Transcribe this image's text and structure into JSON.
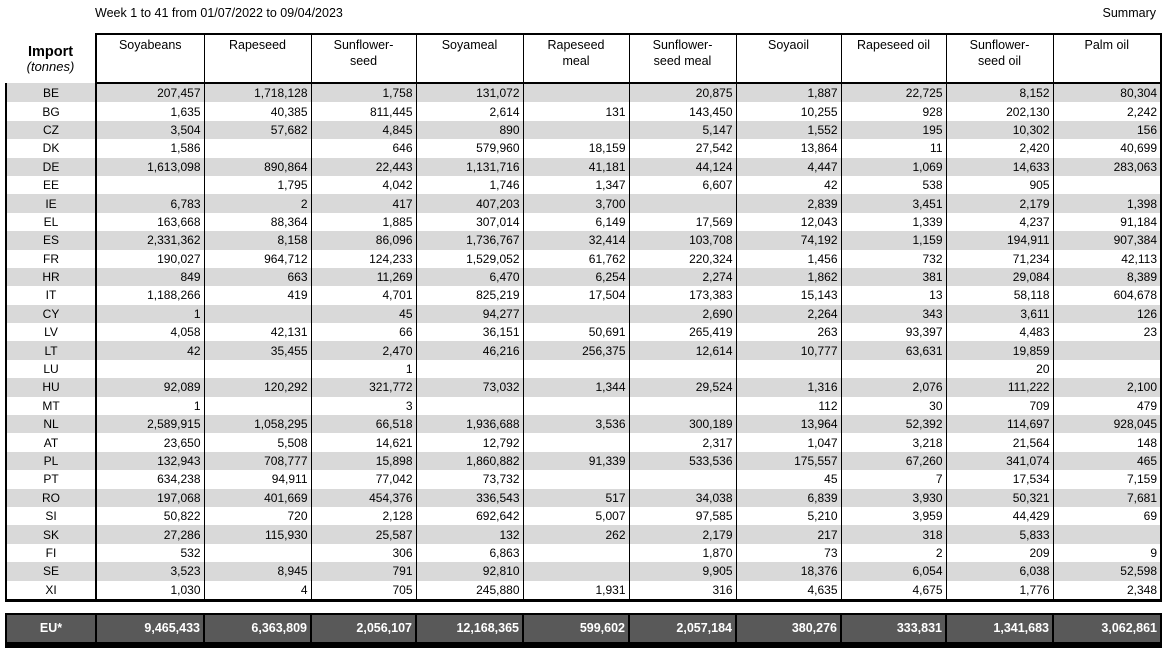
{
  "title": "Week 1 to 41 from 01/07/2022 to 09/04/2023",
  "summary_label": "Summary",
  "colors": {
    "stripe": "#d9d9d9",
    "total_bg": "#595959",
    "border": "#000000"
  },
  "table": {
    "corner": {
      "line1": "Import",
      "line2": "(tonnes)"
    },
    "columns": [
      {
        "label": "Soyabeans",
        "lines": [
          "Soyabeans"
        ]
      },
      {
        "label": "Rapeseed",
        "lines": [
          "Rapeseed"
        ]
      },
      {
        "label": "Sunflower-seed",
        "lines": [
          "Sunflower-",
          "seed"
        ]
      },
      {
        "label": "Soyameal",
        "lines": [
          "Soyameal"
        ]
      },
      {
        "label": "Rapeseed meal",
        "lines": [
          "Rapeseed",
          "meal"
        ]
      },
      {
        "label": "Sunflower-seed meal",
        "lines": [
          "Sunflower-",
          "seed meal"
        ]
      },
      {
        "label": "Soyaoil",
        "lines": [
          "Soyaoil"
        ]
      },
      {
        "label": "Rapeseed oil",
        "lines": [
          "Rapeseed oil"
        ]
      },
      {
        "label": "Sunflower-seed oil",
        "lines": [
          "Sunflower-",
          "seed oil"
        ]
      },
      {
        "label": "Palm oil",
        "lines": [
          "Palm oil"
        ]
      }
    ],
    "rows": [
      {
        "country": "BE",
        "values": [
          "207,457",
          "1,718,128",
          "1,758",
          "131,072",
          "",
          "20,875",
          "1,887",
          "22,725",
          "8,152",
          "80,304"
        ]
      },
      {
        "country": "BG",
        "values": [
          "1,635",
          "40,385",
          "811,445",
          "2,614",
          "131",
          "143,450",
          "10,255",
          "928",
          "202,130",
          "2,242"
        ]
      },
      {
        "country": "CZ",
        "values": [
          "3,504",
          "57,682",
          "4,845",
          "890",
          "",
          "5,147",
          "1,552",
          "195",
          "10,302",
          "156"
        ]
      },
      {
        "country": "DK",
        "values": [
          "1,586",
          "",
          "646",
          "579,960",
          "18,159",
          "27,542",
          "13,864",
          "11",
          "2,420",
          "40,699"
        ]
      },
      {
        "country": "DE",
        "values": [
          "1,613,098",
          "890,864",
          "22,443",
          "1,131,716",
          "41,181",
          "44,124",
          "4,447",
          "1,069",
          "14,633",
          "283,063"
        ]
      },
      {
        "country": "EE",
        "values": [
          "",
          "1,795",
          "4,042",
          "1,746",
          "1,347",
          "6,607",
          "42",
          "538",
          "905",
          ""
        ]
      },
      {
        "country": "IE",
        "values": [
          "6,783",
          "2",
          "417",
          "407,203",
          "3,700",
          "",
          "2,839",
          "3,451",
          "2,179",
          "1,398"
        ]
      },
      {
        "country": "EL",
        "values": [
          "163,668",
          "88,364",
          "1,885",
          "307,014",
          "6,149",
          "17,569",
          "12,043",
          "1,339",
          "4,237",
          "91,184"
        ]
      },
      {
        "country": "ES",
        "values": [
          "2,331,362",
          "8,158",
          "86,096",
          "1,736,767",
          "32,414",
          "103,708",
          "74,192",
          "1,159",
          "194,911",
          "907,384"
        ]
      },
      {
        "country": "FR",
        "values": [
          "190,027",
          "964,712",
          "124,233",
          "1,529,052",
          "61,762",
          "220,324",
          "1,456",
          "732",
          "71,234",
          "42,113"
        ]
      },
      {
        "country": "HR",
        "values": [
          "849",
          "663",
          "11,269",
          "6,470",
          "6,254",
          "2,274",
          "1,862",
          "381",
          "29,084",
          "8,389"
        ]
      },
      {
        "country": "IT",
        "values": [
          "1,188,266",
          "419",
          "4,701",
          "825,219",
          "17,504",
          "173,383",
          "15,143",
          "13",
          "58,118",
          "604,678"
        ]
      },
      {
        "country": "CY",
        "values": [
          "1",
          "",
          "45",
          "94,277",
          "",
          "2,690",
          "2,264",
          "343",
          "3,611",
          "126"
        ]
      },
      {
        "country": "LV",
        "values": [
          "4,058",
          "42,131",
          "66",
          "36,151",
          "50,691",
          "265,419",
          "263",
          "93,397",
          "4,483",
          "23"
        ]
      },
      {
        "country": "LT",
        "values": [
          "42",
          "35,455",
          "2,470",
          "46,216",
          "256,375",
          "12,614",
          "10,777",
          "63,631",
          "19,859",
          ""
        ]
      },
      {
        "country": "LU",
        "values": [
          "",
          "",
          "1",
          "",
          "",
          "",
          "",
          "",
          "20",
          ""
        ]
      },
      {
        "country": "HU",
        "values": [
          "92,089",
          "120,292",
          "321,772",
          "73,032",
          "1,344",
          "29,524",
          "1,316",
          "2,076",
          "111,222",
          "2,100"
        ]
      },
      {
        "country": "MT",
        "values": [
          "1",
          "",
          "3",
          "",
          "",
          "",
          "112",
          "30",
          "709",
          "479"
        ]
      },
      {
        "country": "NL",
        "values": [
          "2,589,915",
          "1,058,295",
          "66,518",
          "1,936,688",
          "3,536",
          "300,189",
          "13,964",
          "52,392",
          "114,697",
          "928,045"
        ]
      },
      {
        "country": "AT",
        "values": [
          "23,650",
          "5,508",
          "14,621",
          "12,792",
          "",
          "2,317",
          "1,047",
          "3,218",
          "21,564",
          "148"
        ]
      },
      {
        "country": "PL",
        "values": [
          "132,943",
          "708,777",
          "15,898",
          "1,860,882",
          "91,339",
          "533,536",
          "175,557",
          "67,260",
          "341,074",
          "465"
        ]
      },
      {
        "country": "PT",
        "values": [
          "634,238",
          "94,911",
          "77,042",
          "73,732",
          "",
          "",
          "45",
          "7",
          "17,534",
          "7,159"
        ]
      },
      {
        "country": "RO",
        "values": [
          "197,068",
          "401,669",
          "454,376",
          "336,543",
          "517",
          "34,038",
          "6,839",
          "3,930",
          "50,321",
          "7,681"
        ]
      },
      {
        "country": "SI",
        "values": [
          "50,822",
          "720",
          "2,128",
          "692,642",
          "5,007",
          "97,585",
          "5,210",
          "3,959",
          "44,429",
          "69"
        ]
      },
      {
        "country": "SK",
        "values": [
          "27,286",
          "115,930",
          "25,587",
          "132",
          "262",
          "2,179",
          "217",
          "318",
          "5,833",
          ""
        ]
      },
      {
        "country": "FI",
        "values": [
          "532",
          "",
          "306",
          "6,863",
          "",
          "1,870",
          "73",
          "2",
          "209",
          "9"
        ]
      },
      {
        "country": "SE",
        "values": [
          "3,523",
          "8,945",
          "791",
          "92,810",
          "",
          "9,905",
          "18,376",
          "6,054",
          "6,038",
          "52,598"
        ]
      },
      {
        "country": "XI",
        "values": [
          "1,030",
          "4",
          "705",
          "245,880",
          "1,931",
          "316",
          "4,635",
          "4,675",
          "1,776",
          "2,348"
        ]
      }
    ],
    "total": {
      "label": "EU*",
      "values": [
        "9,465,433",
        "6,363,809",
        "2,056,107",
        "12,168,365",
        "599,602",
        "2,057,184",
        "380,276",
        "333,831",
        "1,341,683",
        "3,062,861"
      ]
    }
  }
}
